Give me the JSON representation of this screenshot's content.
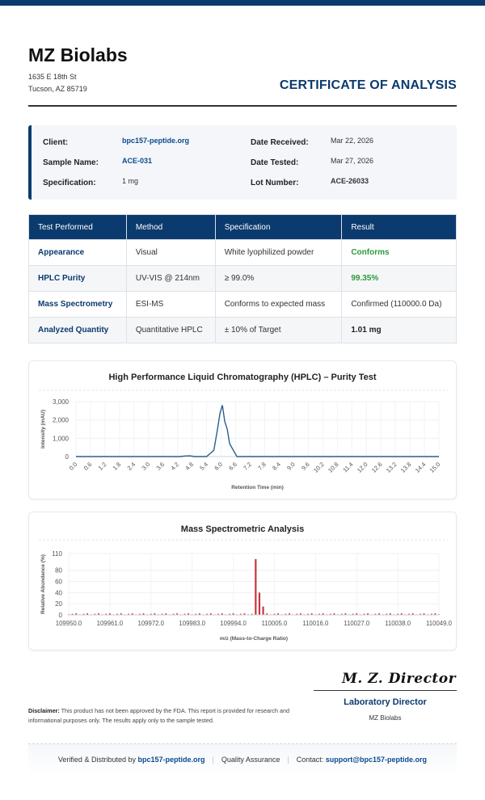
{
  "company": {
    "name": "MZ Biolabs",
    "address_line1": "1635 E 18th St",
    "address_line2": "Tucson, AZ 85719"
  },
  "document_title": "CERTIFICATE OF ANALYSIS",
  "info": {
    "client_label": "Client:",
    "client_value": "bpc157-peptide.org",
    "sample_label": "Sample Name:",
    "sample_value": "ACE-031",
    "spec_label": "Specification:",
    "spec_value": "1 mg",
    "received_label": "Date Received:",
    "received_value": "Mar 22, 2026",
    "tested_label": "Date Tested:",
    "tested_value": "Mar 27, 2026",
    "lot_label": "Lot Number:",
    "lot_value": "ACE-26033"
  },
  "tests": {
    "headers": [
      "Test Performed",
      "Method",
      "Specification",
      "Result"
    ],
    "rows": [
      [
        "Appearance",
        "Visual",
        "White lyophilized powder",
        "Conforms"
      ],
      [
        "HPLC Purity",
        "UV-VIS @ 214nm",
        "≥ 99.0%",
        "99.35%"
      ],
      [
        "Mass Spectrometry",
        "ESI-MS",
        "Conforms to expected mass",
        "Confirmed (110000.0 Da)"
      ],
      [
        "Analyzed Quantity",
        "Quantitative HPLC",
        "± 10% of Target",
        "1.01 mg"
      ]
    ]
  },
  "colors": {
    "primary": "#0b3a6e",
    "pass_green": "#2e9a3c",
    "hplc_line": "#2a5f8f",
    "ms_bars": "#c8343f"
  },
  "chart_data": [
    {
      "type": "line",
      "title": "High Performance Liquid Chromatography (HPLC) – Purity Test",
      "xlabel": "Retention Time (min)",
      "ylabel": "Intensity (mAU)",
      "xlim": [
        0,
        15
      ],
      "ylim": [
        0,
        3000
      ],
      "x_ticks": [
        "0.0",
        "0.6",
        "1.2",
        "1.8",
        "2.4",
        "3.0",
        "3.6",
        "4.2",
        "4.8",
        "5.4",
        "6.0",
        "6.6",
        "7.2",
        "7.8",
        "8.4",
        "9.0",
        "9.6",
        "10.2",
        "10.8",
        "11.4",
        "12.0",
        "12.6",
        "13.2",
        "13.8",
        "14.4",
        "15.0"
      ],
      "y_ticks": [
        "0",
        "1,000",
        "2,000",
        "3,000"
      ],
      "grid": true,
      "series": [
        {
          "x": [
            0,
            4.3,
            4.5,
            4.7,
            4.9,
            5.4,
            5.7,
            5.85,
            5.95,
            6.05,
            6.15,
            6.25,
            6.35,
            6.5,
            6.65,
            7.0,
            15.0
          ],
          "values": [
            0,
            0,
            30,
            40,
            0,
            0,
            350,
            1500,
            2350,
            2800,
            1900,
            1500,
            700,
            350,
            0,
            0,
            0
          ]
        }
      ]
    },
    {
      "type": "bar",
      "title": "Mass Spectrometric Analysis",
      "xlabel": "m/z (Mass-to-Charge Ratio)",
      "ylabel": "Relative Abundance (%)",
      "xlim": [
        109950,
        110049
      ],
      "ylim": [
        0,
        110
      ],
      "x_ticks": [
        "109950.0",
        "109961.0",
        "109972.0",
        "109983.0",
        "109994.0",
        "110005.0",
        "110016.0",
        "110027.0",
        "110038.0",
        "110049.0"
      ],
      "y_ticks": [
        "0",
        "20",
        "40",
        "60",
        "80",
        "110"
      ],
      "grid": true,
      "peaks": [
        {
          "x": 110000,
          "value": 100
        },
        {
          "x": 110001,
          "value": 40
        },
        {
          "x": 110002,
          "value": 15
        }
      ],
      "noise_level_range": [
        1,
        3
      ]
    }
  ],
  "signature": {
    "script": "M. Z. Director",
    "role": "Laboratory Director",
    "company": "MZ Biolabs"
  },
  "disclaimer": {
    "label": "Disclaimer:",
    "text": " This product has not been approved by the FDA. This report is provided for research and informational purposes only. The results apply only to the sample tested."
  },
  "footer": {
    "verified_prefix": "Verified & Distributed by ",
    "verified_link": "bpc157-peptide.org",
    "qa": "Quality Assurance",
    "contact_prefix": "Contact: ",
    "contact_email": "support@bpc157-peptide.org"
  }
}
